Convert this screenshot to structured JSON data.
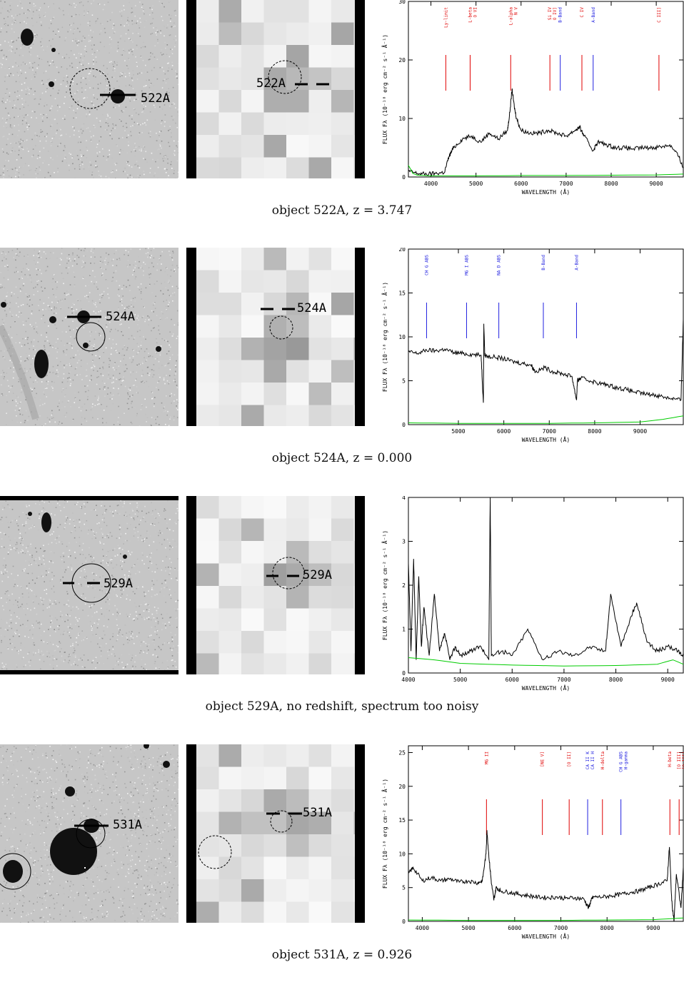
{
  "objects": [
    {
      "id": "522A",
      "label": "522A",
      "caption": "object 522A, z =  3.747",
      "chart_data": {
        "type": "line",
        "xlabel": "WAVELENGTH (Å)",
        "ylabel": "FLUX Fλ (10⁻¹⁸ erg cm⁻² s⁻¹ Å⁻¹)",
        "xlim": [
          3500,
          9600
        ],
        "ylim": [
          0,
          30
        ],
        "xticks": [
          4000,
          5000,
          6000,
          7000,
          8000,
          9000
        ],
        "yticks": [
          0,
          10,
          20,
          30
        ],
        "series": [
          {
            "color": "#000000",
            "x": [
              3500,
              3700,
              3900,
              4100,
              4300,
              4400,
              4500,
              4700,
              4900,
              5100,
              5300,
              5500,
              5700,
              5750,
              5800,
              5850,
              5900,
              6000,
              6200,
              6400,
              6600,
              6800,
              7000,
              7200,
              7300,
              7400,
              7600,
              7700,
              7900,
              8100,
              8300,
              8500,
              8700,
              8900,
              9100,
              9300,
              9500,
              9600
            ],
            "y": [
              1,
              0.6,
              0.5,
              0.6,
              0.8,
              3.5,
              5,
              6.5,
              7,
              6,
              7.5,
              6.5,
              8,
              11,
              15,
              12,
              10,
              8,
              7.5,
              7.5,
              8,
              7.5,
              7,
              8,
              8.5,
              7,
              4.5,
              6,
              5.5,
              5,
              5,
              4.8,
              5,
              5,
              5.2,
              5.5,
              3.5,
              1.5
            ]
          },
          {
            "color": "#00cc00",
            "x": [
              3500,
              3600,
              3700,
              4000,
              5000,
              6000,
              7000,
              8000,
              9000,
              9600
            ],
            "y": [
              2,
              0.6,
              0.3,
              0.2,
              0.2,
              0.25,
              0.25,
              0.3,
              0.35,
              0.5
            ]
          }
        ],
        "lines": [
          {
            "name": "Ly-limit",
            "x": 4330,
            "color": "#e00000"
          },
          {
            "name": "L-beta",
            "name2": "O VI",
            "x": 4870,
            "color": "#e00000"
          },
          {
            "name": "L-alpha",
            "name2": "N V",
            "x": 5770,
            "color": "#e00000"
          },
          {
            "name": "Si IV",
            "name2": "O IV]",
            "x": 6640,
            "color": "#e00000"
          },
          {
            "name": "B-Band",
            "x": 6870,
            "color": "#2020e0"
          },
          {
            "name": "C IV",
            "x": 7350,
            "color": "#e00000"
          },
          {
            "name": "A-Band",
            "x": 7600,
            "color": "#2020e0"
          },
          {
            "name": "C III]",
            "x": 9060,
            "color": "#e00000"
          }
        ]
      }
    },
    {
      "id": "524A",
      "label": "524A",
      "caption": "object 524A, z =  0.000",
      "chart_data": {
        "type": "line",
        "xlabel": "WAVELENGTH (Å)",
        "ylabel": "FLUX Fλ (10⁻¹⁸ erg cm⁻² s⁻¹ Å⁻¹)",
        "xlim": [
          3900,
          9950
        ],
        "ylim": [
          0,
          20
        ],
        "xticks": [
          5000,
          6000,
          7000,
          8000,
          9000
        ],
        "yticks": [
          0,
          5,
          10,
          15,
          20
        ],
        "series": [
          {
            "color": "#000000",
            "x": [
              3900,
              4100,
              4300,
              4500,
              4700,
              4900,
              5100,
              5300,
              5500,
              5550,
              5560,
              5580,
              5600,
              5800,
              6000,
              6200,
              6400,
              6600,
              6700,
              6900,
              7100,
              7300,
              7500,
              7600,
              7620,
              7700,
              7900,
              8100,
              8300,
              8500,
              8700,
              8900,
              9100,
              9300,
              9500,
              9700,
              9900,
              9950
            ],
            "y": [
              8.3,
              8.1,
              8.5,
              8.4,
              8.6,
              8.2,
              8.1,
              8,
              7.9,
              2.5,
              11.5,
              8,
              7.8,
              7.7,
              7.5,
              7.2,
              7,
              6.8,
              6,
              6.5,
              6,
              5.8,
              5.5,
              2.8,
              5,
              5.3,
              5,
              4.7,
              4.5,
              4.2,
              4,
              3.7,
              3.5,
              3.4,
              3.2,
              3,
              2.8,
              12
            ]
          },
          {
            "color": "#00cc00",
            "x": [
              3900,
              5000,
              6000,
              7000,
              8000,
              9000,
              9500,
              9950
            ],
            "y": [
              0.2,
              0.15,
              0.15,
              0.15,
              0.2,
              0.3,
              0.6,
              1
            ]
          }
        ],
        "lines": [
          {
            "name": "CH G ABS",
            "x": 4300,
            "color": "#2020e0"
          },
          {
            "name": "MG I ABS",
            "x": 5180,
            "color": "#2020e0"
          },
          {
            "name": "NA D ABS",
            "x": 5890,
            "color": "#2020e0"
          },
          {
            "name": "B-Band",
            "x": 6870,
            "color": "#2020e0"
          },
          {
            "name": "A-Band",
            "x": 7600,
            "color": "#2020e0"
          }
        ]
      }
    },
    {
      "id": "529A",
      "label": "529A",
      "caption": "object 529A, no redshift, spectrum too noisy",
      "chart_data": {
        "type": "line",
        "xlabel": "WAVELENGTH (Å)",
        "ylabel": "FLUX Fλ (10⁻¹⁸ erg cm⁻² s⁻¹ Å⁻¹)",
        "xlim": [
          4000,
          9300
        ],
        "ylim": [
          0,
          4
        ],
        "xticks": [
          4000,
          5000,
          6000,
          7000,
          8000,
          9000
        ],
        "yticks": [
          0,
          1,
          2,
          3,
          4
        ],
        "series": [
          {
            "color": "#000000",
            "x": [
              4000,
              4050,
              4100,
              4150,
              4200,
              4250,
              4300,
              4400,
              4500,
              4600,
              4700,
              4800,
              4900,
              5000,
              5200,
              5400,
              5550,
              5577,
              5600,
              5800,
              6000,
              6300,
              6600,
              6900,
              7200,
              7500,
              7800,
              7900,
              8100,
              8300,
              8400,
              8600,
              8800,
              9000,
              9200,
              9300
            ],
            "y": [
              2.5,
              0.5,
              2.6,
              0.3,
              2.2,
              0.6,
              1.5,
              0.4,
              1.8,
              0.5,
              0.9,
              0.3,
              0.6,
              0.4,
              0.5,
              0.6,
              0.3,
              4,
              0.4,
              0.5,
              0.4,
              1,
              0.3,
              0.5,
              0.4,
              0.6,
              0.5,
              1.8,
              0.6,
              1.3,
              1.6,
              0.7,
              0.5,
              0.6,
              0.5,
              0.4
            ]
          },
          {
            "color": "#00cc00",
            "x": [
              4000,
              4500,
              5000,
              6000,
              7000,
              8000,
              8800,
              9100,
              9300
            ],
            "y": [
              0.35,
              0.3,
              0.22,
              0.18,
              0.16,
              0.17,
              0.2,
              0.3,
              0.2
            ]
          }
        ],
        "lines": []
      }
    },
    {
      "id": "531A",
      "label": "531A",
      "caption": "object 531A, z =  0.926",
      "chart_data": {
        "type": "line",
        "xlabel": "WAVELENGTH (Å)",
        "ylabel": "FLUX Fλ (10⁻¹⁸ erg cm⁻² s⁻¹ Å⁻¹)",
        "xlim": [
          3700,
          9650
        ],
        "ylim": [
          0,
          26
        ],
        "xticks": [
          4000,
          5000,
          6000,
          7000,
          8000,
          9000
        ],
        "yticks": [
          0,
          5,
          10,
          15,
          20,
          25
        ],
        "series": [
          {
            "color": "#000000",
            "x": [
              3700,
              3800,
              4000,
              4200,
              4400,
              4600,
              4800,
              5000,
              5200,
              5300,
              5380,
              5400,
              5450,
              5500,
              5550,
              5600,
              5700,
              5900,
              6100,
              6300,
              6500,
              6700,
              6900,
              7100,
              7300,
              7500,
              7600,
              7650,
              7700,
              7900,
              8100,
              8300,
              8500,
              8700,
              8900,
              9100,
              9300,
              9350,
              9400,
              9450,
              9500,
              9600,
              9650
            ],
            "y": [
              7,
              8,
              6,
              6.5,
              6,
              6.3,
              5.8,
              6,
              5.7,
              6,
              10,
              13.5,
              9,
              5.5,
              3.2,
              5,
              4.5,
              4.3,
              4,
              3.8,
              3.6,
              3.5,
              3.6,
              3.4,
              3.5,
              3.3,
              2,
              3,
              3.6,
              3.6,
              3.8,
              4,
              4.3,
              4.5,
              5,
              5.5,
              6,
              11,
              3,
              0,
              7,
              2,
              8
            ]
          },
          {
            "color": "#00cc00",
            "x": [
              3700,
              5000,
              6000,
              7000,
              8000,
              9000,
              9650
            ],
            "y": [
              0.2,
              0.15,
              0.15,
              0.15,
              0.2,
              0.25,
              0.5
            ]
          }
        ],
        "lines": [
          {
            "name": "MG II",
            "x": 5390,
            "color": "#e00000"
          },
          {
            "name": "[NE V]",
            "x": 6600,
            "color": "#e00000"
          },
          {
            "name": "[O II]",
            "x": 7180,
            "color": "#e00000"
          },
          {
            "name": "CA II K",
            "name2": "CA II H",
            "x": 7580,
            "color": "#2020e0"
          },
          {
            "name": "H-delta",
            "x": 7900,
            "color": "#e00000"
          },
          {
            "name": "CH G ABS",
            "name2": "H-gamma",
            "x": 8300,
            "color": "#2020e0"
          },
          {
            "name": "H-beta",
            "x": 9360,
            "color": "#e00000"
          },
          {
            "name": "[O III]",
            "name2": "[O III]",
            "x": 9560,
            "color": "#e00000"
          }
        ]
      }
    }
  ]
}
